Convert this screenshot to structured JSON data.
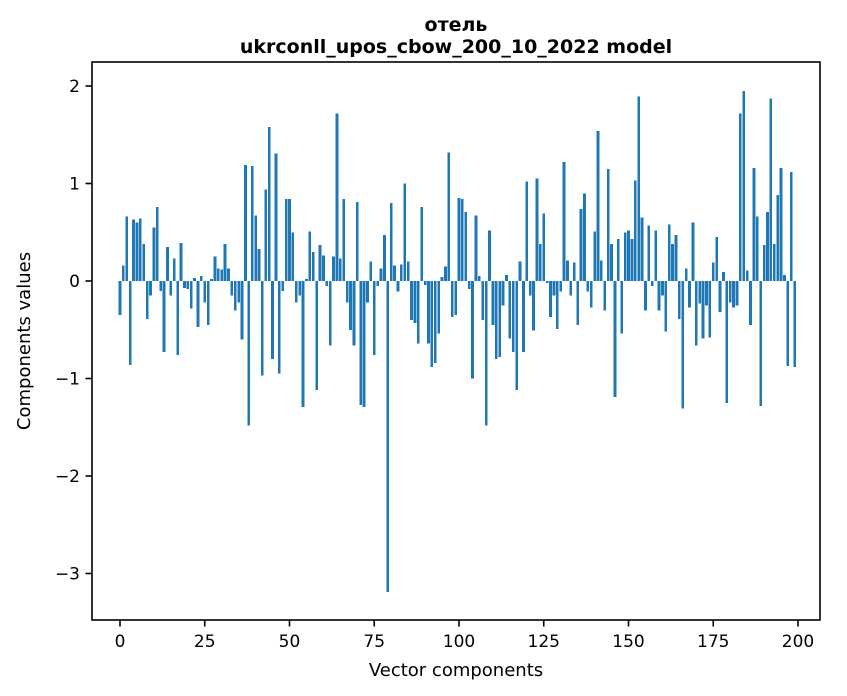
{
  "figure": {
    "background": "#ffffff",
    "bar_color": "#1f77b4",
    "axis_color": "#000000"
  },
  "chart_data": {
    "type": "bar",
    "title_line1": "отель",
    "title_line2": "ukrconll_upos_cbow_200_10_2022 model",
    "xlabel": "Vector components",
    "ylabel": "Components values",
    "legend": null,
    "grid": false,
    "bar_color": "#1f77b4",
    "n_components": 200,
    "x_note": "x value of each bar equals its index 0..199",
    "x_ticks": [
      0,
      25,
      50,
      75,
      100,
      125,
      150,
      175,
      200
    ],
    "y_ticks": [
      2,
      1,
      0,
      -1,
      -2,
      -3
    ],
    "xlim": [
      -8.3,
      206.5
    ],
    "ylim": [
      -3.48,
      2.25
    ],
    "values": [
      -0.35,
      0.16,
      0.66,
      -0.86,
      0.63,
      0.6,
      0.64,
      0.38,
      -0.39,
      -0.15,
      0.55,
      0.76,
      -0.1,
      -0.73,
      0.35,
      -0.15,
      0.23,
      -0.76,
      0.39,
      -0.07,
      -0.08,
      -0.28,
      0.03,
      -0.47,
      0.05,
      -0.22,
      -0.45,
      0.02,
      0.25,
      0.13,
      0.12,
      0.38,
      0.13,
      -0.15,
      -0.3,
      -0.22,
      -0.6,
      1.19,
      -1.48,
      1.18,
      0.67,
      0.33,
      -0.97,
      0.94,
      1.58,
      -0.8,
      1.31,
      -0.95,
      -0.1,
      0.84,
      0.84,
      0.5,
      -0.22,
      -0.15,
      -1.29,
      0.02,
      0.51,
      0.3,
      -1.12,
      0.37,
      0.26,
      -0.05,
      -0.66,
      0.25,
      1.72,
      0.23,
      0.84,
      -0.22,
      -0.5,
      -0.66,
      0.81,
      -1.27,
      -1.29,
      -0.22,
      0.2,
      -0.76,
      -0.05,
      0.13,
      0.47,
      -3.19,
      0.8,
      0.16,
      -0.11,
      0.17,
      1.0,
      0.2,
      -0.4,
      -0.43,
      -0.64,
      0.76,
      -0.04,
      -0.64,
      -0.88,
      -0.84,
      -0.54,
      0.04,
      0.15,
      1.32,
      -0.37,
      -0.35,
      0.85,
      0.84,
      0.71,
      -0.08,
      -1.0,
      0.67,
      0.05,
      -0.4,
      -1.48,
      0.52,
      -0.45,
      -0.8,
      -0.78,
      -0.25,
      0.06,
      -0.59,
      -0.73,
      -1.12,
      0.2,
      -0.73,
      1.02,
      -0.15,
      -0.51,
      1.05,
      0.38,
      0.69,
      -0.02,
      -0.37,
      -0.15,
      -0.49,
      -0.11,
      1.22,
      0.21,
      -0.15,
      0.19,
      -0.45,
      0.74,
      0.9,
      -0.11,
      -0.27,
      0.51,
      1.54,
      0.21,
      -0.3,
      1.15,
      0.38,
      -1.19,
      0.43,
      -0.54,
      0.5,
      0.52,
      0.43,
      1.03,
      1.89,
      0.65,
      -0.3,
      0.57,
      -0.05,
      0.52,
      -0.3,
      -0.15,
      -0.52,
      0.58,
      0.38,
      0.47,
      -0.39,
      -1.31,
      0.13,
      -0.27,
      0.6,
      -0.66,
      -0.23,
      -0.59,
      -0.25,
      -0.58,
      0.19,
      0.45,
      -0.32,
      0.09,
      -1.25,
      -0.22,
      -0.27,
      -0.25,
      1.72,
      1.95,
      0.11,
      -0.45,
      1.16,
      0.66,
      -1.28,
      0.37,
      0.71,
      1.87,
      0.38,
      0.88,
      1.16,
      0.06,
      -0.87,
      1.12,
      -0.88
    ]
  }
}
